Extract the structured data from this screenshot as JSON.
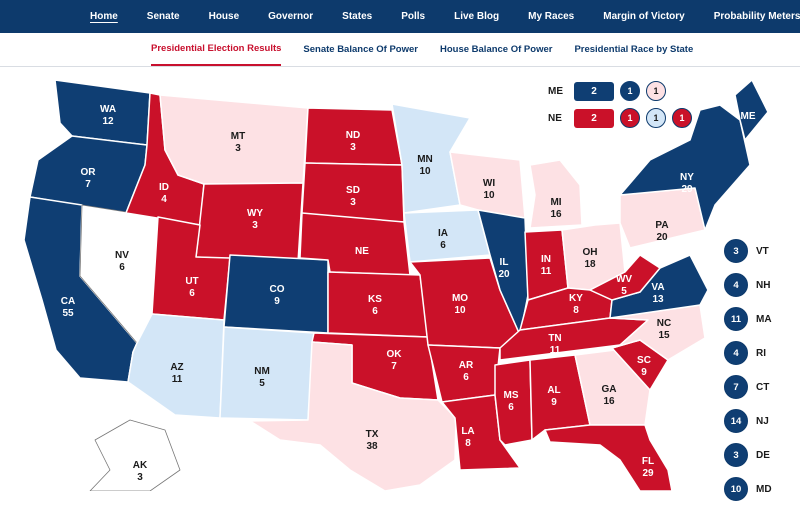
{
  "colors": {
    "dem_safe": "#0f3e73",
    "rep_safe": "#ca1129",
    "dem_lean": "#d3e6f7",
    "rep_lean": "#fde1e4",
    "tossup": "#ffffff"
  },
  "nav": {
    "items": [
      {
        "label": "Home",
        "active": true
      },
      {
        "label": "Senate"
      },
      {
        "label": "House"
      },
      {
        "label": "Governor"
      },
      {
        "label": "States"
      },
      {
        "label": "Polls"
      },
      {
        "label": "Live Blog"
      },
      {
        "label": "My Races"
      },
      {
        "label": "Margin of Victory"
      },
      {
        "label": "Probability Meters"
      }
    ]
  },
  "subnav": {
    "items": [
      {
        "label": "Presidential Election Results",
        "active": true
      },
      {
        "label": "Senate Balance Of Power"
      },
      {
        "label": "House Balance Of Power"
      },
      {
        "label": "Presidential Race by State"
      }
    ]
  },
  "states": {
    "WA": {
      "name": "WA",
      "ev": "12",
      "rating": "dem"
    },
    "OR": {
      "name": "OR",
      "ev": "7",
      "rating": "dem"
    },
    "CA": {
      "name": "CA",
      "ev": "55",
      "rating": "dem"
    },
    "NV": {
      "name": "NV",
      "ev": "6",
      "rating": "tossup"
    },
    "ID": {
      "name": "ID",
      "ev": "4",
      "rating": "rep"
    },
    "MT": {
      "name": "MT",
      "ev": "3",
      "rating": "lean-rep"
    },
    "WY": {
      "name": "WY",
      "ev": "3",
      "rating": "rep"
    },
    "UT": {
      "name": "UT",
      "ev": "6",
      "rating": "rep"
    },
    "AZ": {
      "name": "AZ",
      "ev": "11",
      "rating": "lean-dem"
    },
    "CO": {
      "name": "CO",
      "ev": "9",
      "rating": "dem"
    },
    "NM": {
      "name": "NM",
      "ev": "5",
      "rating": "lean-dem"
    },
    "ND": {
      "name": "ND",
      "ev": "3",
      "rating": "rep"
    },
    "SD": {
      "name": "SD",
      "ev": "3",
      "rating": "rep"
    },
    "NE": {
      "name": "NE",
      "ev": "",
      "rating": "rep"
    },
    "KS": {
      "name": "KS",
      "ev": "6",
      "rating": "rep"
    },
    "OK": {
      "name": "OK",
      "ev": "7",
      "rating": "rep"
    },
    "TX": {
      "name": "TX",
      "ev": "38",
      "rating": "lean-rep"
    },
    "MN": {
      "name": "MN",
      "ev": "10",
      "rating": "lean-dem"
    },
    "IA": {
      "name": "IA",
      "ev": "6",
      "rating": "lean-dem"
    },
    "MO": {
      "name": "MO",
      "ev": "10",
      "rating": "rep"
    },
    "AR": {
      "name": "AR",
      "ev": "6",
      "rating": "rep"
    },
    "LA": {
      "name": "LA",
      "ev": "8",
      "rating": "rep"
    },
    "WI": {
      "name": "WI",
      "ev": "10",
      "rating": "lean-rep"
    },
    "IL": {
      "name": "IL",
      "ev": "20",
      "rating": "dem"
    },
    "MI": {
      "name": "MI",
      "ev": "16",
      "rating": "lean-rep"
    },
    "IN": {
      "name": "IN",
      "ev": "11",
      "rating": "rep"
    },
    "OH": {
      "name": "OH",
      "ev": "18",
      "rating": "lean-rep"
    },
    "KY": {
      "name": "KY",
      "ev": "8",
      "rating": "rep"
    },
    "TN": {
      "name": "TN",
      "ev": "11",
      "rating": "rep"
    },
    "MS": {
      "name": "MS",
      "ev": "6",
      "rating": "rep"
    },
    "AL": {
      "name": "AL",
      "ev": "9",
      "rating": "rep"
    },
    "GA": {
      "name": "GA",
      "ev": "16",
      "rating": "lean-rep"
    },
    "FL": {
      "name": "FL",
      "ev": "29",
      "rating": "rep"
    },
    "SC": {
      "name": "SC",
      "ev": "9",
      "rating": "rep"
    },
    "NC": {
      "name": "NC",
      "ev": "15",
      "rating": "lean-rep"
    },
    "VA": {
      "name": "VA",
      "ev": "13",
      "rating": "dem"
    },
    "WV": {
      "name": "WV",
      "ev": "5",
      "rating": "rep"
    },
    "PA": {
      "name": "PA",
      "ev": "20",
      "rating": "lean-rep"
    },
    "NY": {
      "name": "NY",
      "ev": "29",
      "rating": "dem"
    },
    "ME": {
      "name": "ME",
      "ev": "",
      "rating": "dem"
    },
    "AK": {
      "name": "AK",
      "ev": "3",
      "rating": "tossup"
    }
  },
  "splits": {
    "ME": {
      "label": "ME",
      "total": "2",
      "d1": "1",
      "d2": "1"
    },
    "NE": {
      "label": "NE",
      "total": "2",
      "d1": "1",
      "d2": "1",
      "d3": "1"
    }
  },
  "small_states": [
    {
      "abbr": "VT",
      "ev": "3"
    },
    {
      "abbr": "NH",
      "ev": "4"
    },
    {
      "abbr": "MA",
      "ev": "11"
    },
    {
      "abbr": "RI",
      "ev": "4"
    },
    {
      "abbr": "CT",
      "ev": "7"
    },
    {
      "abbr": "NJ",
      "ev": "14"
    },
    {
      "abbr": "DE",
      "ev": "3"
    },
    {
      "abbr": "MD",
      "ev": "10"
    }
  ]
}
